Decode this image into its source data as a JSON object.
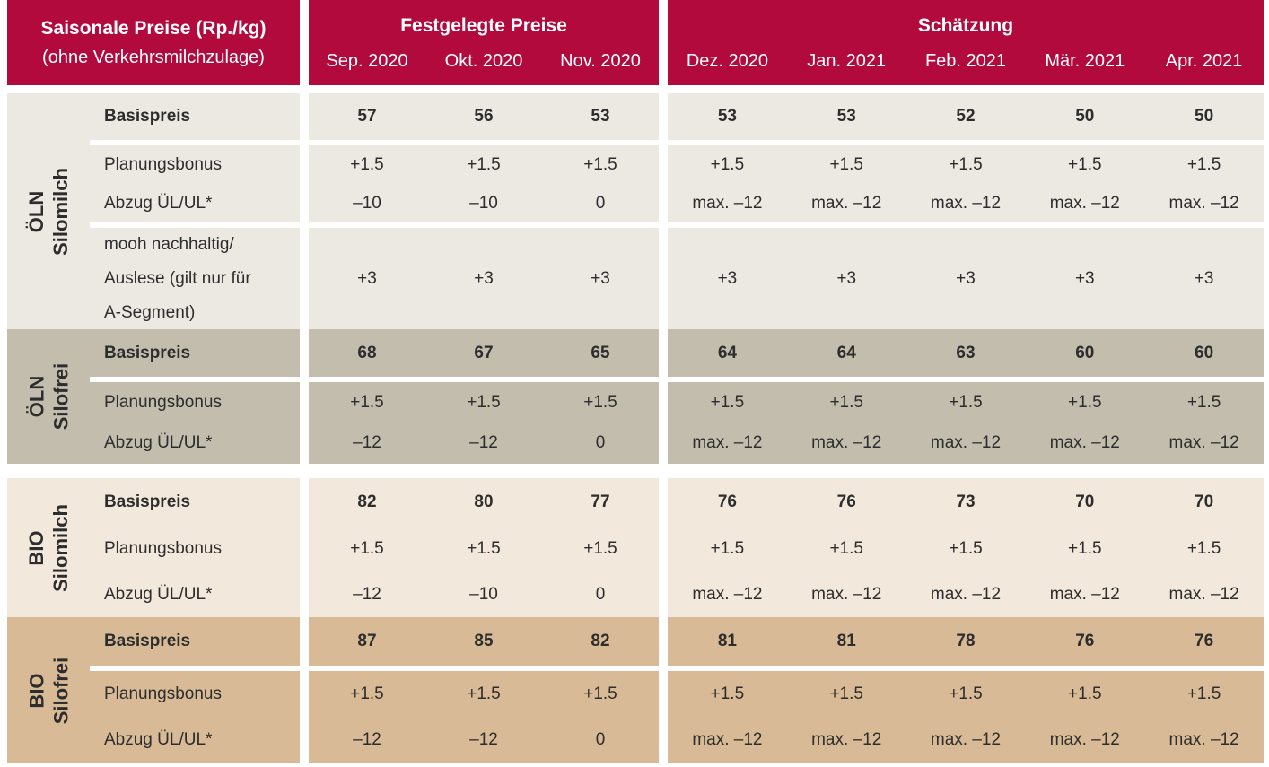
{
  "title_block": {
    "title": "Saisonale Preise (Rp./kg)",
    "subtitle": "(ohne Verkehrsmilchzulage)"
  },
  "column_groups": [
    {
      "title": "Festgelegte Preise",
      "months": [
        "Sep. 2020",
        "Okt. 2020",
        "Nov. 2020"
      ]
    },
    {
      "title": "Schätzung",
      "months": [
        "Dez. 2020",
        "Jan. 2021",
        "Feb. 2021",
        "Mär. 2021",
        "Apr. 2021"
      ]
    }
  ],
  "row_groups": [
    {
      "category": "ÖLN",
      "variant": "Silomilch",
      "rows": [
        {
          "label": "Basispreis",
          "fixed": [
            "57",
            "56",
            "53"
          ],
          "estimate": [
            "53",
            "53",
            "52",
            "50",
            "50"
          ]
        },
        {
          "label": "Planungsbonus",
          "fixed": [
            "+1.5",
            "+1.5",
            "+1.5"
          ],
          "estimate": [
            "+1.5",
            "+1.5",
            "+1.5",
            "+1.5",
            "+1.5"
          ]
        },
        {
          "label": "Abzug ÜL/UL*",
          "fixed": [
            "–10",
            "–10",
            "0"
          ],
          "estimate": [
            "max. –12",
            "max. –12",
            "max. –12",
            "max. –12",
            "max. –12"
          ]
        },
        {
          "label_lines": [
            "mooh nachhaltig/",
            "Auslese (gilt nur für",
            "A-Segment)"
          ],
          "fixed": [
            "+3",
            "+3",
            "+3"
          ],
          "estimate": [
            "+3",
            "+3",
            "+3",
            "+3",
            "+3"
          ]
        }
      ]
    },
    {
      "category": "ÖLN",
      "variant": "Silofrei",
      "rows": [
        {
          "label": "Basispreis",
          "fixed": [
            "68",
            "67",
            "65"
          ],
          "estimate": [
            "64",
            "64",
            "63",
            "60",
            "60"
          ]
        },
        {
          "label": "Planungsbonus",
          "fixed": [
            "+1.5",
            "+1.5",
            "+1.5"
          ],
          "estimate": [
            "+1.5",
            "+1.5",
            "+1.5",
            "+1.5",
            "+1.5"
          ]
        },
        {
          "label": "Abzug ÜL/UL*",
          "fixed": [
            "–12",
            "–12",
            "0"
          ],
          "estimate": [
            "max. –12",
            "max. –12",
            "max. –12",
            "max. –12",
            "max. –12"
          ]
        }
      ]
    },
    {
      "category": "BIO",
      "variant": "Silomilch",
      "rows": [
        {
          "label": "Basispreis",
          "fixed": [
            "82",
            "80",
            "77"
          ],
          "estimate": [
            "76",
            "76",
            "73",
            "70",
            "70"
          ]
        },
        {
          "label": "Planungsbonus",
          "fixed": [
            "+1.5",
            "+1.5",
            "+1.5"
          ],
          "estimate": [
            "+1.5",
            "+1.5",
            "+1.5",
            "+1.5",
            "+1.5"
          ]
        },
        {
          "label": "Abzug ÜL/UL*",
          "fixed": [
            "–12",
            "–10",
            "0"
          ],
          "estimate": [
            "max. –12",
            "max. –12",
            "max. –12",
            "max. –12",
            "max. –12"
          ]
        }
      ]
    },
    {
      "category": "BIO",
      "variant": "Silofrei",
      "rows": [
        {
          "label": "Basispreis",
          "fixed": [
            "87",
            "85",
            "82"
          ],
          "estimate": [
            "81",
            "81",
            "78",
            "76",
            "76"
          ]
        },
        {
          "label": "Planungsbonus",
          "fixed": [
            "+1.5",
            "+1.5",
            "+1.5"
          ],
          "estimate": [
            "+1.5",
            "+1.5",
            "+1.5",
            "+1.5",
            "+1.5"
          ]
        },
        {
          "label": "Abzug ÜL/UL*",
          "fixed": [
            "–12",
            "–12",
            "0"
          ],
          "estimate": [
            "max. –12",
            "max. –12",
            "max. –12",
            "max. –12",
            "max. –12"
          ]
        }
      ]
    }
  ],
  "colors": {
    "header_bg": "#B20A3C",
    "header_text": "#FFFFFF",
    "group_bgs": [
      "#ECE9E3",
      "#C3BDAE",
      "#F2E9DC",
      "#D8BB96"
    ],
    "text": "#2D2D2D",
    "separator": "#FFFFFF"
  }
}
